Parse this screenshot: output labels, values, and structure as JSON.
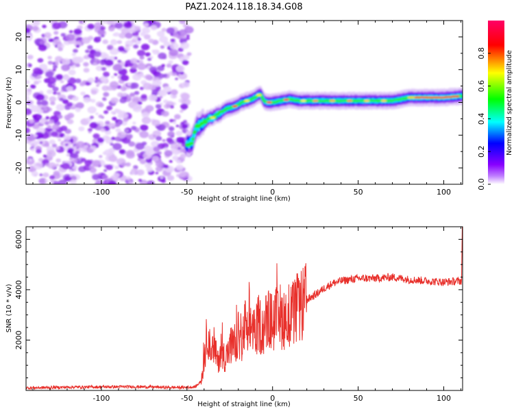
{
  "title": "PAZ1.2024.118.18.34.G08",
  "chart_data": [
    {
      "type": "heatmap",
      "xlabel": "Height of straight line (km)",
      "ylabel": "Frequency (Hz)",
      "xlim": [
        -144,
        111
      ],
      "ylim": [
        -25,
        25
      ],
      "xticks": [
        -100,
        -50,
        0,
        50,
        100
      ],
      "yticks": [
        -20,
        -10,
        0,
        10,
        20
      ],
      "noise_region": {
        "x_start": -144,
        "x_end": -50,
        "y_range": [
          -25,
          25
        ]
      },
      "ridge": {
        "x": [
          -50,
          -47,
          -45,
          -43,
          -40,
          -37,
          -34,
          -30,
          -27,
          -24,
          -21,
          -18,
          -15,
          -12,
          -9,
          -7,
          -5,
          -3,
          0,
          5,
          10,
          15,
          20,
          30,
          40,
          50,
          60,
          70,
          80,
          90,
          100,
          111
        ],
        "freq": [
          -13,
          -12,
          -8,
          -7,
          -6,
          -5,
          -4.5,
          -3,
          -2,
          -1.5,
          -1,
          0,
          0.5,
          1,
          2,
          2.5,
          0.5,
          0,
          0,
          0.5,
          1,
          0.5,
          0.5,
          0.5,
          0.5,
          0.5,
          0.5,
          0.5,
          1.5,
          1.5,
          1.5,
          2
        ]
      },
      "colorbar": {
        "label": "Normalized spectral amplitude",
        "ticks": [
          0.0,
          0.2,
          0.4,
          0.6,
          0.8
        ],
        "tick_labels": [
          "0.0",
          "0.2",
          "0.4",
          "0.6",
          "0.8"
        ],
        "colors": [
          "#ffffff",
          "#8800ff",
          "#0000ff",
          "#00ffff",
          "#00ff00",
          "#ffff00",
          "#ff0000",
          "#ff0066"
        ]
      }
    },
    {
      "type": "line",
      "xlabel": "Height of straight line (km)",
      "ylabel": "SNR (10 * v/v)",
      "xlim": [
        -144,
        111
      ],
      "ylim": [
        0,
        6500
      ],
      "xticks": [
        -100,
        -50,
        0,
        50,
        100
      ],
      "yticks": [
        2000,
        4000,
        6000
      ],
      "series": [
        {
          "color": "#e8302b",
          "x": [
            -144,
            -120,
            -100,
            -80,
            -60,
            -50,
            -45,
            -42,
            -40,
            -38,
            -36,
            -34,
            -32,
            -30,
            -28,
            -26,
            -24,
            -22,
            -20,
            -18,
            -16,
            -14,
            -12,
            -10,
            -8,
            -6,
            -4,
            -2,
            0,
            2,
            4,
            6,
            8,
            10,
            12,
            14,
            16,
            18,
            20,
            25,
            30,
            35,
            40,
            50,
            60,
            70,
            80,
            90,
            100,
            110
          ],
          "y": [
            100,
            130,
            140,
            150,
            120,
            120,
            150,
            350,
            1000,
            2500,
            1300,
            1800,
            1100,
            1700,
            1300,
            1500,
            1800,
            1600,
            2200,
            1800,
            2600,
            2000,
            2700,
            2300,
            2700,
            2400,
            2700,
            2800,
            2700,
            2900,
            2600,
            3000,
            2700,
            3100,
            3000,
            3200,
            3300,
            3400,
            3600,
            3800,
            4050,
            4250,
            4350,
            4450,
            4450,
            4500,
            4400,
            4350,
            4300,
            4350
          ]
        }
      ]
    }
  ]
}
